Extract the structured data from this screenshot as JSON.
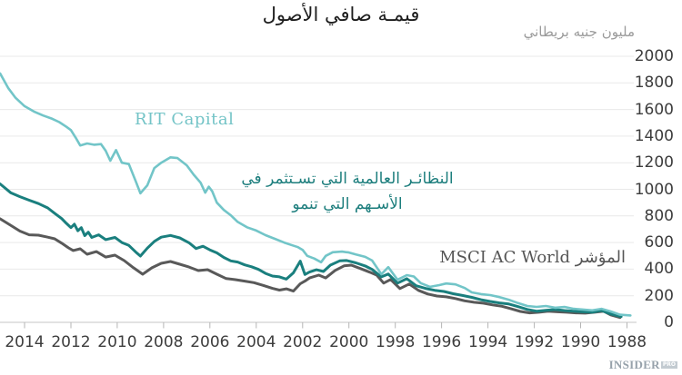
{
  "title": "قيمـة صافي الأصول",
  "unit_label": "مليون جنيه بريطاني",
  "logo": {
    "name": "INSIDER",
    "badge": "PRO"
  },
  "chart_data": {
    "type": "line",
    "title": "قيمـة صافي الأصول",
    "ylabel": "مليون جنيه بريطاني",
    "xlabel": "",
    "grid": "horizontal",
    "x_axis": {
      "ticks": [
        2014,
        2012,
        2010,
        2008,
        2006,
        2004,
        2002,
        2000,
        1998,
        1996,
        1994,
        1992,
        1990,
        1988
      ],
      "reversed": true,
      "range": [
        2015.1,
        1987.7
      ]
    },
    "y_axis": {
      "ticks": [
        0,
        200,
        400,
        600,
        800,
        1000,
        1200,
        1400,
        1600,
        1800,
        2000
      ],
      "range": [
        0,
        2000
      ],
      "position": "right"
    },
    "annotations": {
      "rit": {
        "text": "RIT Capital",
        "color": "#74c4c7"
      },
      "peers": {
        "line1": "النظائـر العالمية التي تسـتثمر في",
        "line2": "الأسـهم التي تنمو",
        "color": "#1d7e7d"
      },
      "msci": {
        "text": "المؤشر MSCI AC World",
        "color": "#565656"
      }
    },
    "series": [
      {
        "id": "msci-ac-world",
        "name": "المؤشر MSCI AC World",
        "color": "#595959",
        "width": 3,
        "points": [
          [
            2015.05,
            778
          ],
          [
            2014.6,
            730
          ],
          [
            2014.2,
            686
          ],
          [
            2013.8,
            658
          ],
          [
            2013.4,
            655
          ],
          [
            2013,
            640
          ],
          [
            2012.7,
            628
          ],
          [
            2012.4,
            595
          ],
          [
            2012.1,
            560
          ],
          [
            2011.9,
            540
          ],
          [
            2011.6,
            553
          ],
          [
            2011.3,
            512
          ],
          [
            2010.9,
            532
          ],
          [
            2010.5,
            491
          ],
          [
            2010.1,
            505
          ],
          [
            2009.7,
            464
          ],
          [
            2009.3,
            410
          ],
          [
            2008.9,
            362
          ],
          [
            2008.5,
            410
          ],
          [
            2008.1,
            444
          ],
          [
            2007.7,
            457
          ],
          [
            2007.3,
            437
          ],
          [
            2006.9,
            416
          ],
          [
            2006.5,
            389
          ],
          [
            2006.1,
            396
          ],
          [
            2005.7,
            362
          ],
          [
            2005.3,
            329
          ],
          [
            2004.9,
            321
          ],
          [
            2004.5,
            310
          ],
          [
            2004.1,
            298
          ],
          [
            2003.7,
            278
          ],
          [
            2003.3,
            255
          ],
          [
            2003,
            242
          ],
          [
            2002.7,
            252
          ],
          [
            2002.4,
            235
          ],
          [
            2002.1,
            290
          ],
          [
            2001.9,
            310
          ],
          [
            2001.7,
            334
          ],
          [
            2001.3,
            355
          ],
          [
            2001,
            334
          ],
          [
            2000.6,
            390
          ],
          [
            2000.2,
            425
          ],
          [
            1999.9,
            430
          ],
          [
            1999.5,
            404
          ],
          [
            1999.1,
            377
          ],
          [
            1998.8,
            355
          ],
          [
            1998.5,
            295
          ],
          [
            1998.2,
            322
          ],
          [
            1997.8,
            254
          ],
          [
            1997.4,
            288
          ],
          [
            1997,
            240
          ],
          [
            1996.6,
            213
          ],
          [
            1996.2,
            198
          ],
          [
            1995.8,
            192
          ],
          [
            1995.4,
            179
          ],
          [
            1995,
            162
          ],
          [
            1994.6,
            151
          ],
          [
            1994.2,
            144
          ],
          [
            1993.8,
            131
          ],
          [
            1993.4,
            121
          ],
          [
            1993,
            102
          ],
          [
            1992.6,
            82
          ],
          [
            1992.2,
            71
          ],
          [
            1991.8,
            76
          ],
          [
            1991.4,
            83
          ],
          [
            1991,
            79
          ],
          [
            1990.6,
            76
          ],
          [
            1990.2,
            71
          ],
          [
            1989.8,
            69
          ],
          [
            1989.4,
            76
          ],
          [
            1989,
            83
          ],
          [
            1988.7,
            56
          ],
          [
            1988.3,
            36
          ]
        ]
      },
      {
        "id": "global-peers",
        "name": "النظائر العالمية التي تستثمر في الأسهم التي تنمو",
        "color": "#1a7f7e",
        "width": 3,
        "points": [
          [
            2015.05,
            1040
          ],
          [
            2014.6,
            975
          ],
          [
            2014.2,
            945
          ],
          [
            2013.8,
            918
          ],
          [
            2013.4,
            893
          ],
          [
            2013,
            860
          ],
          [
            2012.7,
            820
          ],
          [
            2012.4,
            780
          ],
          [
            2012.2,
            745
          ],
          [
            2012,
            712
          ],
          [
            2011.85,
            738
          ],
          [
            2011.7,
            688
          ],
          [
            2011.55,
            712
          ],
          [
            2011.4,
            652
          ],
          [
            2011.25,
            678
          ],
          [
            2011.1,
            638
          ],
          [
            2010.8,
            658
          ],
          [
            2010.5,
            622
          ],
          [
            2010.1,
            638
          ],
          [
            2009.8,
            600
          ],
          [
            2009.5,
            578
          ],
          [
            2009.2,
            528
          ],
          [
            2009,
            498
          ],
          [
            2008.7,
            558
          ],
          [
            2008.4,
            608
          ],
          [
            2008.1,
            640
          ],
          [
            2007.7,
            653
          ],
          [
            2007.3,
            635
          ],
          [
            2006.9,
            598
          ],
          [
            2006.6,
            555
          ],
          [
            2006.3,
            572
          ],
          [
            2006,
            545
          ],
          [
            2005.7,
            522
          ],
          [
            2005.4,
            488
          ],
          [
            2005.1,
            462
          ],
          [
            2004.8,
            453
          ],
          [
            2004.5,
            432
          ],
          [
            2004.2,
            418
          ],
          [
            2003.9,
            398
          ],
          [
            2003.6,
            368
          ],
          [
            2003.3,
            348
          ],
          [
            2003,
            342
          ],
          [
            2002.7,
            325
          ],
          [
            2002.4,
            372
          ],
          [
            2002.1,
            460
          ],
          [
            2001.9,
            360
          ],
          [
            2001.7,
            378
          ],
          [
            2001.4,
            395
          ],
          [
            2001.1,
            382
          ],
          [
            2000.8,
            430
          ],
          [
            2000.4,
            462
          ],
          [
            2000.1,
            465
          ],
          [
            1999.7,
            447
          ],
          [
            1999.3,
            424
          ],
          [
            1999,
            398
          ],
          [
            1998.6,
            342
          ],
          [
            1998.3,
            363
          ],
          [
            1997.9,
            295
          ],
          [
            1997.5,
            328
          ],
          [
            1997.1,
            275
          ],
          [
            1996.7,
            255
          ],
          [
            1996.3,
            241
          ],
          [
            1995.9,
            232
          ],
          [
            1995.5,
            215
          ],
          [
            1995.1,
            202
          ],
          [
            1994.7,
            188
          ],
          [
            1994.3,
            170
          ],
          [
            1993.9,
            157
          ],
          [
            1993.5,
            146
          ],
          [
            1993.1,
            138
          ],
          [
            1992.7,
            118
          ],
          [
            1992.3,
            97
          ],
          [
            1991.9,
            84
          ],
          [
            1991.5,
            91
          ],
          [
            1991.1,
            96
          ],
          [
            1990.7,
            89
          ],
          [
            1990.3,
            83
          ],
          [
            1989.9,
            79
          ],
          [
            1989.5,
            76
          ],
          [
            1989.1,
            89
          ],
          [
            1988.7,
            63
          ],
          [
            1988.25,
            43
          ]
        ]
      },
      {
        "id": "rit-capital",
        "name": "RIT Capital",
        "color": "#72c5c8",
        "width": 2.6,
        "points": [
          [
            2015.05,
            1870
          ],
          [
            2014.7,
            1760
          ],
          [
            2014.4,
            1690
          ],
          [
            2014,
            1625
          ],
          [
            2013.6,
            1585
          ],
          [
            2013.2,
            1555
          ],
          [
            2012.8,
            1530
          ],
          [
            2012.5,
            1505
          ],
          [
            2012.2,
            1470
          ],
          [
            2012,
            1445
          ],
          [
            2011.8,
            1390
          ],
          [
            2011.6,
            1330
          ],
          [
            2011.3,
            1345
          ],
          [
            2011,
            1335
          ],
          [
            2010.7,
            1340
          ],
          [
            2010.5,
            1290
          ],
          [
            2010.3,
            1215
          ],
          [
            2010.05,
            1295
          ],
          [
            2009.8,
            1200
          ],
          [
            2009.5,
            1190
          ],
          [
            2009.2,
            1060
          ],
          [
            2009,
            970
          ],
          [
            2008.7,
            1030
          ],
          [
            2008.4,
            1160
          ],
          [
            2008.1,
            1200
          ],
          [
            2007.7,
            1240
          ],
          [
            2007.4,
            1235
          ],
          [
            2007,
            1180
          ],
          [
            2006.7,
            1110
          ],
          [
            2006.4,
            1050
          ],
          [
            2006.2,
            975
          ],
          [
            2006.05,
            1020
          ],
          [
            2005.9,
            985
          ],
          [
            2005.7,
            900
          ],
          [
            2005.4,
            845
          ],
          [
            2005.1,
            805
          ],
          [
            2004.8,
            755
          ],
          [
            2004.4,
            715
          ],
          [
            2004,
            690
          ],
          [
            2003.6,
            655
          ],
          [
            2003.2,
            628
          ],
          [
            2002.8,
            600
          ],
          [
            2002.5,
            582
          ],
          [
            2002.2,
            565
          ],
          [
            2002,
            545
          ],
          [
            2001.8,
            500
          ],
          [
            2001.5,
            480
          ],
          [
            2001.2,
            452
          ],
          [
            2001,
            500
          ],
          [
            2000.7,
            527
          ],
          [
            2000.3,
            532
          ],
          [
            2000,
            525
          ],
          [
            1999.7,
            510
          ],
          [
            1999.3,
            492
          ],
          [
            1999,
            465
          ],
          [
            1998.6,
            362
          ],
          [
            1998.3,
            415
          ],
          [
            1997.9,
            320
          ],
          [
            1997.5,
            355
          ],
          [
            1997.2,
            345
          ],
          [
            1996.9,
            295
          ],
          [
            1996.5,
            267
          ],
          [
            1996.1,
            280
          ],
          [
            1995.8,
            292
          ],
          [
            1995.4,
            285
          ],
          [
            1995,
            258
          ],
          [
            1994.7,
            225
          ],
          [
            1994.3,
            212
          ],
          [
            1993.9,
            205
          ],
          [
            1993.5,
            190
          ],
          [
            1993.1,
            170
          ],
          [
            1992.7,
            145
          ],
          [
            1992.3,
            123
          ],
          [
            1991.9,
            116
          ],
          [
            1991.5,
            123
          ],
          [
            1991.1,
            110
          ],
          [
            1990.7,
            116
          ],
          [
            1990.3,
            102
          ],
          [
            1989.9,
            96
          ],
          [
            1989.5,
            90
          ],
          [
            1989.1,
            102
          ],
          [
            1988.7,
            82
          ],
          [
            1988.3,
            57
          ],
          [
            1987.85,
            52
          ]
        ]
      }
    ]
  }
}
